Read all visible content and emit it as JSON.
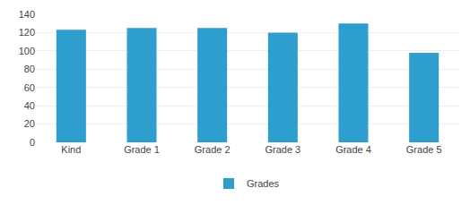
{
  "chart_data": {
    "type": "bar",
    "categories": [
      "Kind",
      "Grade 1",
      "Grade 2",
      "Grade 3",
      "Grade 4",
      "Grade 5"
    ],
    "series": [
      {
        "name": "Grades",
        "color": "#2e9ece",
        "values": [
          123,
          125,
          125,
          120,
          130,
          98
        ]
      }
    ],
    "ylim": [
      0,
      140
    ],
    "yticks": [
      0,
      20,
      40,
      60,
      80,
      100,
      120,
      140
    ],
    "grid": true,
    "legend": "bottom"
  }
}
